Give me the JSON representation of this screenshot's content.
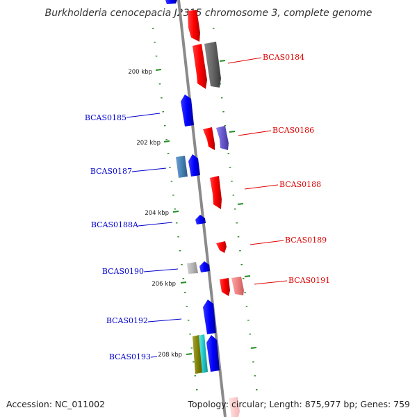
{
  "title": "Burkholderia cenocepacia J2315 chromosome 3, complete genome",
  "footer": {
    "accession": "Accession: NC_011002",
    "summary": "Topology: circular; Length: 875,977 bp; Genes: 759"
  },
  "colors": {
    "backbone": "#8a8a8a",
    "forward_label": "#0000cc",
    "reverse_label": "#dd0000",
    "tick": "#228b22",
    "dots": "#2e8b2e"
  },
  "ticks": [
    "200 kbp",
    "202 kbp",
    "204 kbp",
    "206 kbp",
    "208 kbp"
  ],
  "gene_labels": {
    "forward": [
      "BCAS0185",
      "BCAS0187",
      "BCAS0188A",
      "BCAS0190",
      "BCAS0192",
      "BCAS0193"
    ],
    "reverse": [
      "BCAS0184",
      "BCAS0186",
      "BCAS0188",
      "BCAS0189",
      "BCAS0191"
    ]
  }
}
